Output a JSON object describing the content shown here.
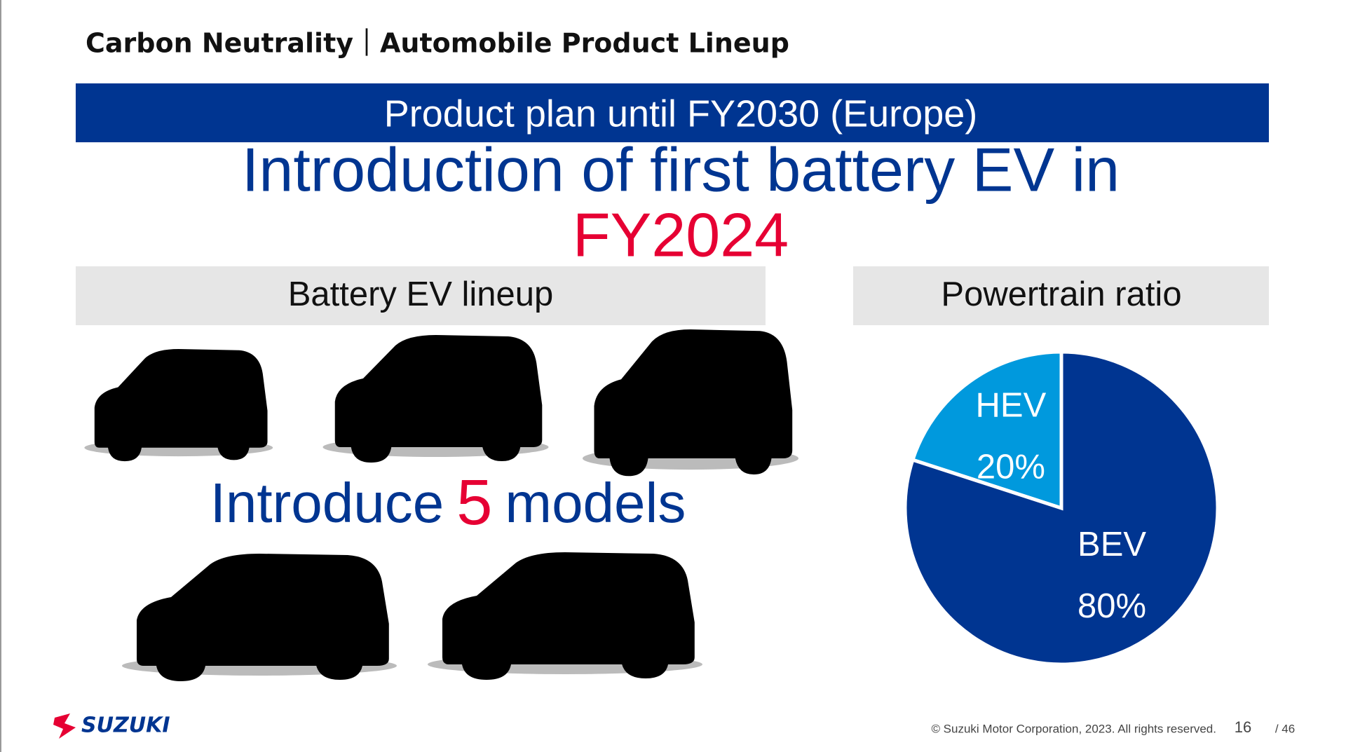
{
  "header": {
    "title": "Carbon Neutrality｜Automobile Product Lineup"
  },
  "banner": {
    "title": "Product plan until FY2030 (Europe)"
  },
  "headline": {
    "line1": "Introduction of first battery EV in",
    "line2": "FY2024"
  },
  "lineup": {
    "title": "Battery EV lineup",
    "text_before": "Introduce",
    "count": "5",
    "text_after": "models"
  },
  "chart_data": {
    "type": "pie",
    "title": "Powertrain ratio",
    "categories": [
      "HEV",
      "BEV"
    ],
    "values": [
      20,
      80
    ],
    "value_labels": [
      "20%",
      "80%"
    ],
    "colors": [
      "#0099dd",
      "#003591"
    ]
  },
  "footer": {
    "logo": "SUZUKI",
    "copyright": "© Suzuki Motor Corporation, 2023. All rights reserved.",
    "page": "16",
    "total": "/ 46"
  }
}
